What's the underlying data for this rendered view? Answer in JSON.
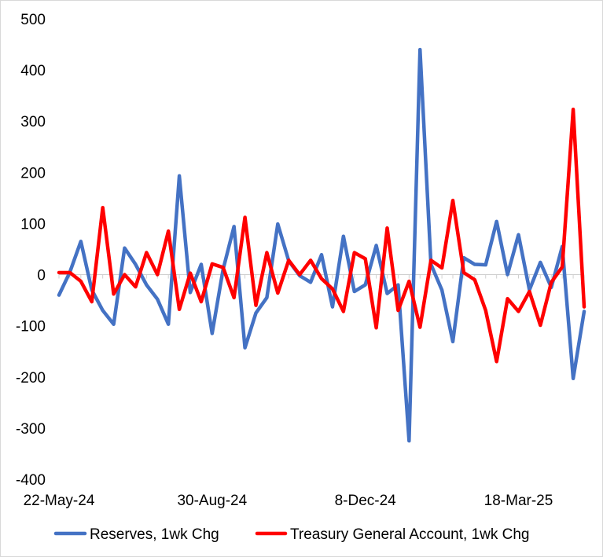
{
  "chart_data": {
    "type": "line",
    "title": "",
    "xlabel": "",
    "ylabel": "",
    "ylim": [
      -400,
      500
    ],
    "yticks": [
      -400,
      -300,
      -200,
      -100,
      0,
      100,
      200,
      300,
      400,
      500
    ],
    "x_tick_labels": [
      {
        "index": 0,
        "label": "22-May-24"
      },
      {
        "index": 14,
        "label": "30-Aug-24"
      },
      {
        "index": 28,
        "label": "8-Dec-24"
      },
      {
        "index": 42,
        "label": "18-Mar-25"
      }
    ],
    "grid": false,
    "legend_position": "bottom",
    "series": [
      {
        "name": "Reserves, 1wk Chg",
        "color": "#4472C4",
        "values": [
          -40,
          5,
          65,
          -30,
          -70,
          -97,
          52,
          20,
          -20,
          -48,
          -97,
          193,
          -35,
          20,
          -115,
          10,
          94,
          -143,
          -75,
          -45,
          99,
          27,
          -2,
          -15,
          39,
          -63,
          75,
          -33,
          -20,
          57,
          -37,
          -20,
          -325,
          440,
          20,
          -30,
          -131,
          33,
          20,
          19,
          104,
          0,
          78,
          -30,
          24,
          -25,
          55,
          -203,
          -72
        ]
      },
      {
        "name": "Treasury General Account, 1wk Chg",
        "color": "#FF0000",
        "values": [
          4,
          4,
          -13,
          -53,
          131,
          -38,
          0,
          -24,
          43,
          0,
          85,
          -68,
          3,
          -53,
          21,
          14,
          -45,
          112,
          -60,
          43,
          -36,
          28,
          0,
          28,
          -8,
          -28,
          -72,
          43,
          31,
          -104,
          91,
          -70,
          -13,
          -103,
          28,
          13,
          145,
          4,
          -10,
          -70,
          -170,
          -47,
          -72,
          -33,
          -99,
          -15,
          15,
          323,
          -63
        ]
      }
    ]
  }
}
